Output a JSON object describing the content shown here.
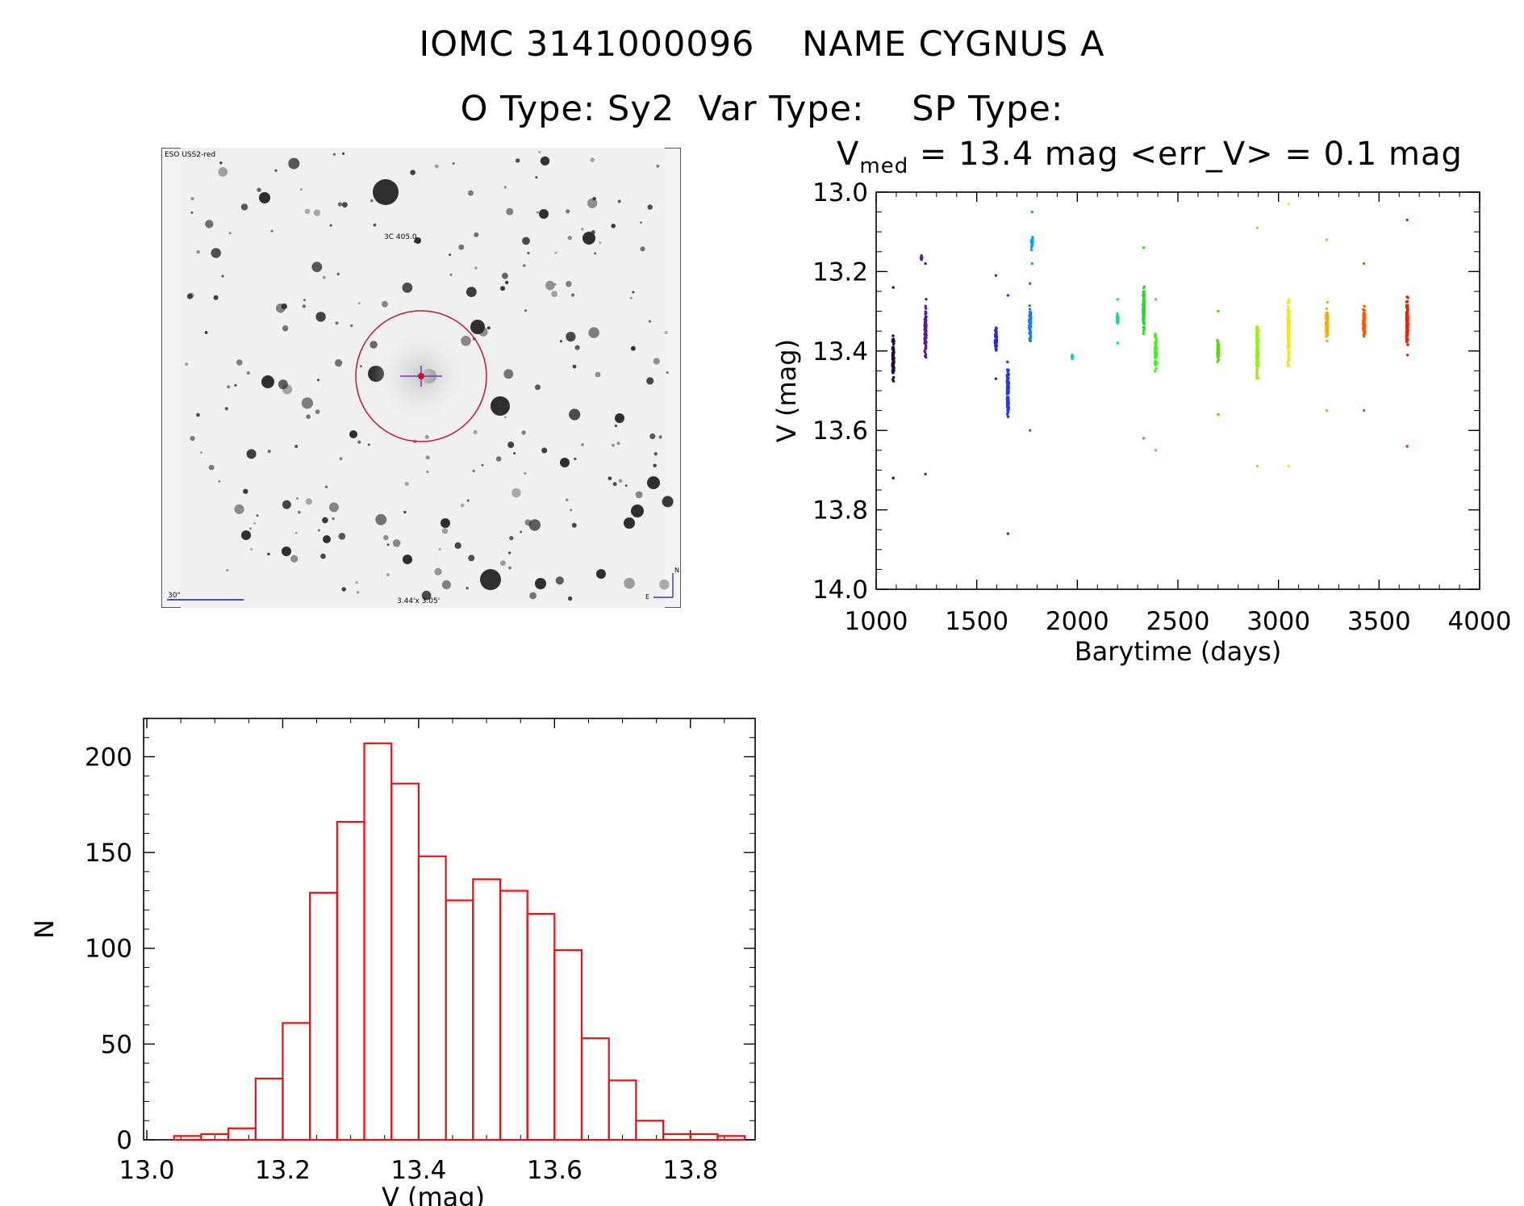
{
  "header": {
    "title_line1": "IOMC 3141000096    NAME CYGNUS A",
    "title_line2": "O Type: Sy2  Var Type:    SP Type:",
    "stats_prefix": "V",
    "stats_sub": "med",
    "stats_suffix": " = 13.4 mag <err_V> = 0.1 mag"
  },
  "finder": {
    "survey_label": "ESO USS2-red",
    "object_label": "3C 405.0",
    "scale_label": "30\"",
    "fov_label": "3.44'x 3.05'",
    "north_label": "N",
    "east_label": "E",
    "colors": {
      "circle": "#c0182a",
      "cross": "#8a2bd6",
      "labels": "#0a1ea0"
    }
  },
  "chart_data": [
    {
      "type": "scatter",
      "title": "",
      "xlabel": "Barytime (days)",
      "ylabel": "V (mag)",
      "xlim": [
        1000,
        4000
      ],
      "ylim": [
        14.0,
        13.0
      ],
      "y_inverted": true,
      "xticks": [
        1000,
        1500,
        2000,
        2500,
        3000,
        3500,
        4000
      ],
      "yticks": [
        13.0,
        13.2,
        13.4,
        13.6,
        13.8,
        14.0
      ],
      "ytick_labels": [
        "13.0",
        "13.2",
        "13.4",
        "13.6",
        "13.8",
        "14.0"
      ],
      "grid": false,
      "groups": [
        {
          "x": 1085,
          "y_min": 13.24,
          "y_max": 13.72,
          "y_center": 13.42,
          "color": "#2a0a3a"
        },
        {
          "x": 1245,
          "y_min": 13.18,
          "y_max": 13.71,
          "y_center": 13.35,
          "color": "#5a1a9a"
        },
        {
          "x": 1225,
          "y_min": 13.16,
          "y_max": 13.17,
          "y_center": 13.165,
          "color": "#5a1a9a"
        },
        {
          "x": 1595,
          "y_min": 13.21,
          "y_max": 13.47,
          "y_center": 13.37,
          "color": "#2a2ad0"
        },
        {
          "x": 1655,
          "y_min": 13.26,
          "y_max": 13.86,
          "y_center": 13.5,
          "color": "#1a3aff"
        },
        {
          "x": 1765,
          "y_min": 13.23,
          "y_max": 13.6,
          "y_center": 13.33,
          "color": "#1a7aee"
        },
        {
          "x": 1775,
          "y_min": 13.05,
          "y_max": 13.18,
          "y_center": 13.13,
          "color": "#00aaee"
        },
        {
          "x": 1975,
          "y_min": 13.41,
          "y_max": 13.42,
          "y_center": 13.415,
          "color": "#00cccc"
        },
        {
          "x": 2200,
          "y_min": 13.27,
          "y_max": 13.38,
          "y_center": 13.32,
          "color": "#00ddaa"
        },
        {
          "x": 2330,
          "y_min": 13.14,
          "y_max": 13.62,
          "y_center": 13.3,
          "color": "#22dd22"
        },
        {
          "x": 2390,
          "y_min": 13.27,
          "y_max": 13.65,
          "y_center": 13.4,
          "color": "#44ee22"
        },
        {
          "x": 2700,
          "y_min": 13.3,
          "y_max": 13.56,
          "y_center": 13.4,
          "color": "#55dd00"
        },
        {
          "x": 2895,
          "y_min": 13.09,
          "y_max": 13.69,
          "y_center": 13.4,
          "color": "#99ee11"
        },
        {
          "x": 3050,
          "y_min": 13.03,
          "y_max": 13.69,
          "y_center": 13.35,
          "color": "#eeee00"
        },
        {
          "x": 3240,
          "y_min": 13.12,
          "y_max": 13.55,
          "y_center": 13.33,
          "color": "#ffaa00"
        },
        {
          "x": 3425,
          "y_min": 13.18,
          "y_max": 13.55,
          "y_center": 13.33,
          "color": "#ff5500"
        },
        {
          "x": 3640,
          "y_min": 13.07,
          "y_max": 13.64,
          "y_center": 13.33,
          "color": "#ee2200"
        }
      ]
    },
    {
      "type": "bar",
      "title": "",
      "xlabel": "V (mag)",
      "ylabel": "N",
      "xlim": [
        13.0,
        13.9
      ],
      "ylim": [
        0,
        220
      ],
      "xticks": [
        13.0,
        13.2,
        13.4,
        13.6,
        13.8
      ],
      "xtick_labels": [
        "13.0",
        "13.2",
        "13.4",
        "13.6",
        "13.8"
      ],
      "yticks": [
        0,
        50,
        100,
        150,
        200
      ],
      "bin_width": 0.04,
      "bin_edges_start": 13.04,
      "counts": [
        2,
        3,
        6,
        32,
        61,
        129,
        166,
        207,
        186,
        148,
        125,
        136,
        130,
        118,
        99,
        53,
        31,
        10,
        3,
        3,
        2
      ],
      "bar_color": "#ee1111",
      "grid": false
    }
  ]
}
